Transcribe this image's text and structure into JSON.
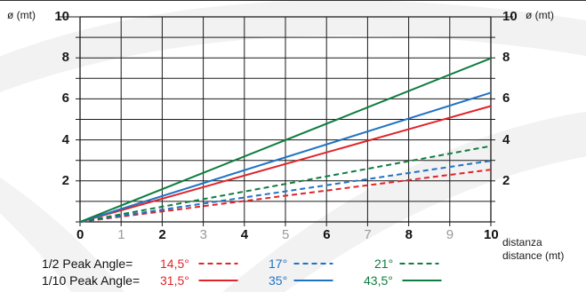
{
  "chart_data": {
    "type": "line",
    "y_unit_left": "ø (mt)",
    "y_unit_right": "ø (mt)",
    "x_label_line1": "distanza",
    "x_label_line2": "distance (mt)",
    "xlim": [
      0,
      10
    ],
    "ylim": [
      0,
      10
    ],
    "x_ticks": [
      "0",
      "1",
      "2",
      "3",
      "4",
      "5",
      "6",
      "7",
      "8",
      "9",
      "10"
    ],
    "x_tick_strong": [
      true,
      false,
      true,
      false,
      true,
      false,
      true,
      false,
      true,
      false,
      true
    ],
    "y_ticks_left": [
      "10",
      "8",
      "6",
      "4",
      "2"
    ],
    "y_ticks_right": [
      "10",
      "8",
      "6",
      "4",
      "2"
    ],
    "y_tick_values": [
      10,
      8,
      6,
      4,
      2
    ],
    "grid": true,
    "series": [
      {
        "name": "14,5°",
        "group": "half",
        "style": "dashed",
        "color": "#e0242a",
        "x": [
          0,
          10
        ],
        "y": [
          0,
          2.55
        ]
      },
      {
        "name": "17°",
        "group": "half",
        "style": "dashed",
        "color": "#1f73c4",
        "x": [
          0,
          10
        ],
        "y": [
          0,
          2.98
        ]
      },
      {
        "name": "21°",
        "group": "half",
        "style": "dashed",
        "color": "#0f7d3f",
        "x": [
          0,
          10
        ],
        "y": [
          0,
          3.7
        ]
      },
      {
        "name": "31,5°",
        "group": "tenth",
        "style": "solid",
        "color": "#e0242a",
        "x": [
          0,
          10
        ],
        "y": [
          0,
          5.65
        ]
      },
      {
        "name": "35°",
        "group": "tenth",
        "style": "solid",
        "color": "#1f73c4",
        "x": [
          0,
          10
        ],
        "y": [
          0,
          6.3
        ]
      },
      {
        "name": "43,5°",
        "group": "tenth",
        "style": "solid",
        "color": "#0f7d3f",
        "x": [
          0,
          10
        ],
        "y": [
          0,
          7.98
        ]
      }
    ]
  },
  "legend": {
    "half_label": "1/2 Peak Angle=",
    "tenth_label": "1/10 Peak Angle="
  }
}
